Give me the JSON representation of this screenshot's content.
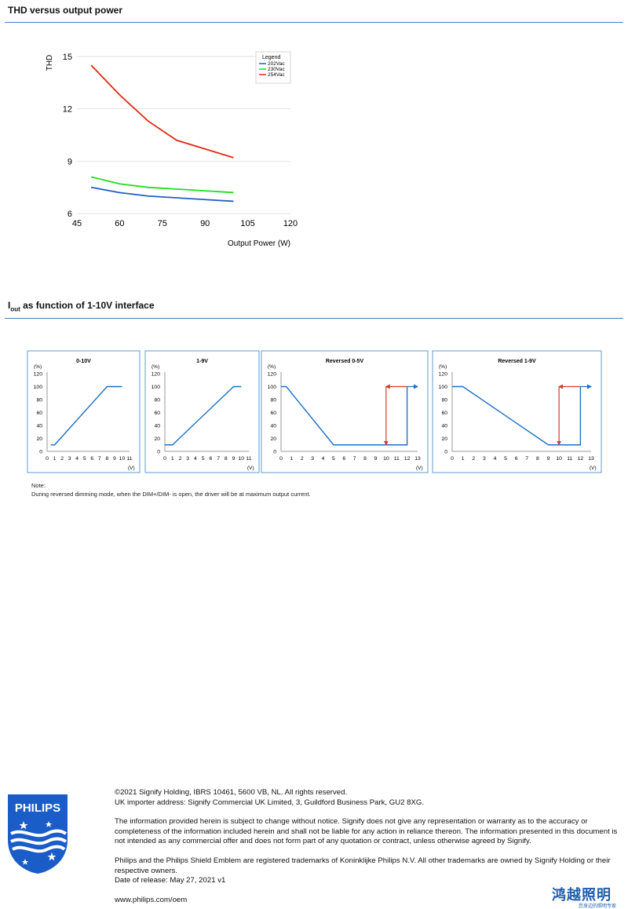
{
  "section1": {
    "title": "THD versus output power"
  },
  "section2": {
    "title_main": "I",
    "title_sub": "out",
    "title_rest": " as function of 1-10V interface"
  },
  "chart_data": [
    {
      "type": "line",
      "ylabel": "THD",
      "xlabel": "Output Power (W)",
      "xlim": [
        45,
        120
      ],
      "ylim": [
        6,
        15
      ],
      "xticks": [
        "45",
        "60",
        "75",
        "90",
        "105",
        "120"
      ],
      "xtick_values": [
        45,
        60,
        75,
        90,
        105,
        120
      ],
      "yticks": [
        "6",
        "9",
        "12",
        "15"
      ],
      "ytick_values": [
        6,
        9,
        12,
        15
      ],
      "legend_title": "Legend",
      "legend_position": "top-right",
      "grid": "horizontal",
      "series": [
        {
          "name": "202Vac",
          "color": "#1f5fc4",
          "x": [
            50,
            60,
            70,
            80,
            90,
            100
          ],
          "y": [
            7.5,
            7.2,
            7.0,
            6.9,
            6.8,
            6.7
          ]
        },
        {
          "name": "230Vac",
          "color": "#22dd22",
          "x": [
            50,
            55,
            60,
            70,
            80,
            90,
            100
          ],
          "y": [
            8.1,
            7.9,
            7.7,
            7.5,
            7.4,
            7.3,
            7.2
          ]
        },
        {
          "name": "254Vac",
          "color": "#e02a12",
          "x": [
            50,
            60,
            70,
            80,
            90,
            100
          ],
          "y": [
            14.5,
            12.8,
            11.3,
            10.2,
            9.7,
            9.2
          ]
        }
      ]
    },
    {
      "type": "line",
      "title": "0-10V",
      "yunit": "(%)",
      "xunit": "(V)",
      "xlim": [
        0,
        11
      ],
      "ylim": [
        0,
        120
      ],
      "xticks": [
        "0",
        "1",
        "2",
        "3",
        "4",
        "5",
        "6",
        "7",
        "8",
        "9",
        "10",
        "11"
      ],
      "yticks": [
        "0",
        "20",
        "40",
        "60",
        "80",
        "100",
        "120"
      ],
      "series": [
        {
          "color": "#1f6fc4",
          "x": [
            0.5,
            1,
            8,
            10
          ],
          "y": [
            10,
            10,
            100,
            100
          ]
        }
      ],
      "arrows": []
    },
    {
      "type": "line",
      "title": "1-9V",
      "yunit": "(%)",
      "xunit": "(V)",
      "xlim": [
        0,
        11
      ],
      "ylim": [
        0,
        120
      ],
      "xticks": [
        "0",
        "1",
        "2",
        "3",
        "4",
        "5",
        "6",
        "7",
        "8",
        "9",
        "10",
        "11"
      ],
      "yticks": [
        "0",
        "20",
        "40",
        "60",
        "80",
        "100",
        "120"
      ],
      "series": [
        {
          "color": "#1f6fc4",
          "x": [
            0,
            1,
            9,
            10
          ],
          "y": [
            10,
            10,
            100,
            100
          ]
        }
      ],
      "arrows": []
    },
    {
      "type": "line",
      "title": "Reversed 0-5V",
      "yunit": "(%)",
      "xunit": "(V)",
      "xlim": [
        0,
        13
      ],
      "ylim": [
        0,
        120
      ],
      "xticks": [
        "0",
        "1",
        "2",
        "3",
        "4",
        "5",
        "6",
        "7",
        "8",
        "9",
        "10",
        "11",
        "12",
        "13"
      ],
      "yticks": [
        "0",
        "20",
        "40",
        "60",
        "80",
        "100",
        "120"
      ],
      "series": [
        {
          "color": "#1f6fc4",
          "x": [
            0,
            0.5,
            5,
            12,
            12
          ],
          "y": [
            100,
            100,
            10,
            10,
            100
          ]
        }
      ],
      "arrows": [
        {
          "color": "#1f6fc4",
          "x": [
            12,
            13
          ],
          "y": [
            100,
            100
          ]
        },
        {
          "color": "#d63a2a",
          "x": [
            12,
            10
          ],
          "y": [
            100,
            100
          ]
        },
        {
          "color": "#d63a2a",
          "x": [
            10,
            10
          ],
          "y": [
            100,
            10
          ]
        }
      ]
    },
    {
      "type": "line",
      "title": "Reversed 1-9V",
      "yunit": "(%)",
      "xunit": "(V)",
      "xlim": [
        0,
        13
      ],
      "ylim": [
        0,
        120
      ],
      "xticks": [
        "0",
        "1",
        "2",
        "3",
        "4",
        "5",
        "6",
        "7",
        "8",
        "9",
        "10",
        "11",
        "12",
        "13"
      ],
      "yticks": [
        "0",
        "20",
        "40",
        "60",
        "80",
        "100",
        "120"
      ],
      "series": [
        {
          "color": "#1f6fc4",
          "x": [
            0,
            1,
            9,
            12,
            12
          ],
          "y": [
            100,
            100,
            10,
            10,
            100
          ]
        }
      ],
      "arrows": [
        {
          "color": "#1f6fc4",
          "x": [
            12,
            13
          ],
          "y": [
            100,
            100
          ]
        },
        {
          "color": "#d63a2a",
          "x": [
            12,
            10
          ],
          "y": [
            100,
            100
          ]
        },
        {
          "color": "#d63a2a",
          "x": [
            10,
            10
          ],
          "y": [
            100,
            10
          ]
        }
      ]
    }
  ],
  "note": {
    "label": "Note:",
    "text": "During reversed dimming mode, when the DIM+/DIM- is open, the driver will be at maximum output current."
  },
  "footer": {
    "copyright": "©2021 Signify Holding, IBRS 10461, 5600 VB, NL. All rights reserved.",
    "importer": "UK importer address: Signify Commercial UK Limited, 3, Guildford Business Park, GU2 8XG.",
    "disclaimer": "The information provided herein is subject to change without notice. Signify does not give any representation or warranty as to the accuracy or completeness of the information included herein and shall not be liable for any action in reliance thereon. The information presented in this document is not intended as any commercial offer and does not form part of any quotation or contract, unless otherwise agreed by Signify.",
    "trademarks": "Philips and the Philips Shield Emblem are registered trademarks of Koninklijke Philips N.V. All other trademarks are owned by Signify Holding or their respective owners.",
    "release": "Date of release: May 27, 2021 v1",
    "website": "www.philips.com/oem"
  },
  "logo": {
    "wordmark": "PHILIPS",
    "color": "#1a5cc8"
  },
  "watermark": {
    "cn": "鸿越照明",
    "sub": "您身边的照明专家",
    "color": "#1f5fae"
  }
}
